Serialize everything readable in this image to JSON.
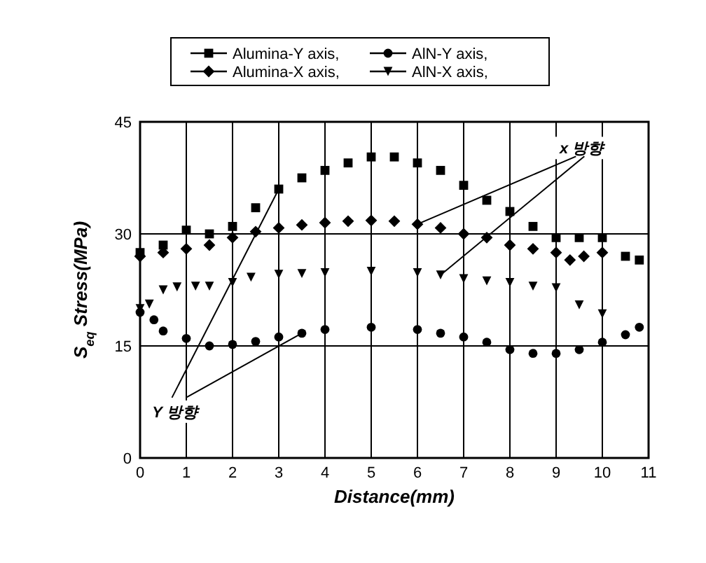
{
  "chart_data": {
    "type": "scatter",
    "xlabel": "Distance(mm)",
    "ylabel": "S$_{eq}$ Stress(MPa)",
    "xlim": [
      0,
      11
    ],
    "xticks": [
      0,
      1,
      2,
      3,
      4,
      5,
      6,
      7,
      8,
      9,
      10,
      11
    ],
    "ylim": [
      0,
      45
    ],
    "yticks": [
      0,
      15,
      30,
      45
    ],
    "grid": true,
    "legend": "top",
    "series": [
      {
        "name": "Alumina-Y axis,",
        "color": "#000000",
        "marker": "square",
        "x": [
          0,
          0.5,
          1,
          1.5,
          2,
          2.5,
          3,
          3.5,
          4,
          4.5,
          5,
          5.5,
          6,
          6.5,
          7,
          7.5,
          8,
          8.5,
          9,
          9.5,
          10,
          10.5,
          10.8
        ],
        "values": [
          27.5,
          28.5,
          30.5,
          30,
          31,
          33.5,
          36,
          37.5,
          38.5,
          39.5,
          40.3,
          40.3,
          39.5,
          38.5,
          36.5,
          34.5,
          33,
          31,
          29.5,
          29.5,
          29.5,
          27,
          26.5
        ]
      },
      {
        "name": "AlN-Y axis,",
        "color": "#000000",
        "marker": "circle",
        "x": [
          0,
          0.3,
          0.5,
          1,
          1.5,
          2,
          2.5,
          3,
          3.5,
          4,
          5,
          6,
          6.5,
          7,
          7.5,
          8,
          8.5,
          9,
          9.5,
          10,
          10.5,
          10.8
        ],
        "values": [
          19.5,
          18.5,
          17,
          16,
          15,
          15.2,
          15.6,
          16.2,
          16.7,
          17.2,
          17.5,
          17.2,
          16.7,
          16.2,
          15.5,
          14.5,
          14,
          14,
          14.5,
          15.5,
          16.5,
          17.5
        ]
      },
      {
        "name": "Alumina-X axis,",
        "color": "#000000",
        "marker": "diamond",
        "x": [
          0,
          0.5,
          1,
          1.5,
          2,
          2.5,
          3,
          3.5,
          4,
          4.5,
          5,
          5.5,
          6,
          6.5,
          7,
          7.5,
          8,
          8.5,
          9,
          9.3,
          9.6,
          10
        ],
        "values": [
          27,
          27.5,
          28,
          28.5,
          29.5,
          30.3,
          30.8,
          31.2,
          31.5,
          31.7,
          31.8,
          31.7,
          31.3,
          30.8,
          30,
          29.5,
          28.5,
          28,
          27.5,
          26.5,
          27,
          27.5
        ]
      },
      {
        "name": "AlN-X axis,",
        "color": "#000000",
        "marker": "triangle",
        "x": [
          0,
          0.2,
          0.5,
          0.8,
          1.2,
          1.5,
          2,
          2.4,
          3,
          3.5,
          4,
          5,
          6,
          6.5,
          7,
          7.5,
          8,
          8.5,
          9,
          9.5,
          10
        ],
        "values": [
          20,
          20.6,
          22.5,
          22.9,
          23,
          23,
          23.5,
          24.2,
          24.6,
          24.7,
          24.8,
          25,
          24.8,
          24.5,
          24,
          23.7,
          23.5,
          23,
          22.8,
          20.5,
          19.3
        ]
      }
    ],
    "annotations": [
      {
        "text": "x 방향",
        "x": 6,
        "y": 31.3
      },
      {
        "text": "Y 방향",
        "x": 3,
        "y": 36
      }
    ]
  }
}
